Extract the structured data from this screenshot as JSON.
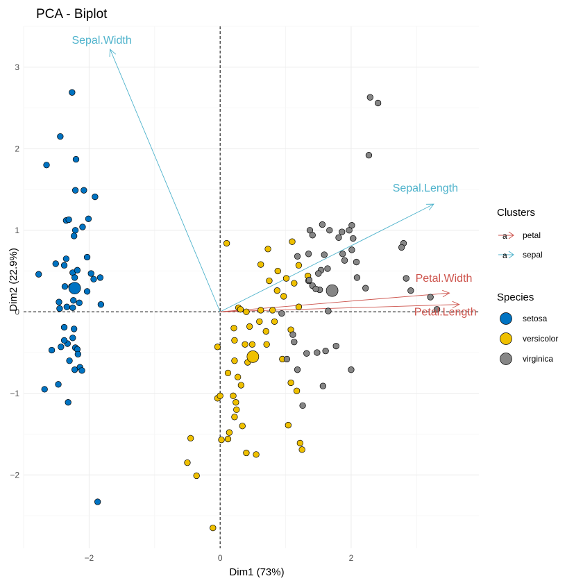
{
  "chart_data": {
    "type": "scatter",
    "title": "PCA - Biplot",
    "xlabel": "Dim1 (73%)",
    "ylabel": "Dim2 (22.9%)",
    "xlim": [
      -3.0,
      3.95
    ],
    "ylim": [
      -2.9,
      3.5
    ],
    "x_ticks": [
      -2,
      0,
      2
    ],
    "y_ticks": [
      -2,
      -1,
      0,
      1,
      2,
      3
    ],
    "grid": true,
    "reference_lines": {
      "x": 0,
      "y": 0,
      "style": "dashed"
    },
    "legend_placement": "right",
    "species_legend": {
      "title": "Species",
      "entries": [
        {
          "label": "setosa",
          "color": "#0073C2"
        },
        {
          "label": "versicolor",
          "color": "#EFC000"
        },
        {
          "label": "virginica",
          "color": "#868686"
        }
      ]
    },
    "cluster_legend": {
      "title": "Clusters",
      "entries": [
        {
          "label": "petal",
          "color": "#CD534C"
        },
        {
          "label": "sepal",
          "color": "#4FB3CC"
        }
      ]
    },
    "arrows": [
      {
        "label": "Sepal.Width",
        "cluster": "sepal",
        "x": -1.68,
        "y": 3.22
      },
      {
        "label": "Sepal.Length",
        "cluster": "sepal",
        "x": 3.26,
        "y": 1.32
      },
      {
        "label": "Petal.Width",
        "cluster": "petal",
        "x": 3.5,
        "y": 0.23
      },
      {
        "label": "Petal.Length",
        "cluster": "petal",
        "x": 3.65,
        "y": 0.09
      }
    ],
    "centroids": [
      {
        "species": "setosa",
        "x": -2.22,
        "y": 0.29
      },
      {
        "species": "versicolor",
        "x": 0.5,
        "y": -0.55
      },
      {
        "species": "virginica",
        "x": 1.71,
        "y": 0.26
      }
    ],
    "series": [
      {
        "name": "setosa",
        "points": [
          [
            -2.26,
            2.69
          ],
          [
            -2.44,
            2.15
          ],
          [
            -2.2,
            1.87
          ],
          [
            -2.65,
            1.8
          ],
          [
            -2.21,
            1.49
          ],
          [
            -2.08,
            1.49
          ],
          [
            -1.91,
            1.41
          ],
          [
            -2.35,
            1.12
          ],
          [
            -2.31,
            1.13
          ],
          [
            -2.01,
            1.14
          ],
          [
            -2.21,
            1.0
          ],
          [
            -2.1,
            1.04
          ],
          [
            -2.23,
            0.93
          ],
          [
            -2.35,
            0.65
          ],
          [
            -2.03,
            0.67
          ],
          [
            -2.51,
            0.59
          ],
          [
            -2.38,
            0.57
          ],
          [
            -2.25,
            0.48
          ],
          [
            -2.18,
            0.51
          ],
          [
            -1.97,
            0.47
          ],
          [
            -2.77,
            0.46
          ],
          [
            -2.22,
            0.42
          ],
          [
            -1.93,
            0.4
          ],
          [
            -1.83,
            0.42
          ],
          [
            -2.37,
            0.31
          ],
          [
            -2.27,
            0.31
          ],
          [
            -2.03,
            0.25
          ],
          [
            -2.24,
            0.14
          ],
          [
            -2.46,
            0.12
          ],
          [
            -2.34,
            0.06
          ],
          [
            -2.15,
            0.11
          ],
          [
            -2.45,
            0.04
          ],
          [
            -2.25,
            0.05
          ],
          [
            -1.82,
            0.09
          ],
          [
            -2.38,
            -0.19
          ],
          [
            -2.23,
            -0.21
          ],
          [
            -2.25,
            -0.32
          ],
          [
            -2.33,
            -0.39
          ],
          [
            -2.38,
            -0.35
          ],
          [
            -2.43,
            -0.43
          ],
          [
            -2.57,
            -0.47
          ],
          [
            -2.21,
            -0.44
          ],
          [
            -2.18,
            -0.46
          ],
          [
            -2.17,
            -0.52
          ],
          [
            -2.3,
            -0.6
          ],
          [
            -2.14,
            -0.68
          ],
          [
            -2.11,
            -0.72
          ],
          [
            -2.22,
            -0.71
          ],
          [
            -2.68,
            -0.95
          ],
          [
            -2.47,
            -0.89
          ],
          [
            -2.32,
            -1.11
          ],
          [
            -1.87,
            -2.33
          ]
        ]
      },
      {
        "name": "versicolor",
        "points": [
          [
            0.1,
            0.84
          ],
          [
            0.73,
            0.77
          ],
          [
            1.1,
            0.86
          ],
          [
            0.62,
            0.58
          ],
          [
            0.88,
            0.5
          ],
          [
            1.2,
            0.57
          ],
          [
            1.34,
            0.44
          ],
          [
            0.75,
            0.38
          ],
          [
            1.01,
            0.41
          ],
          [
            1.13,
            0.35
          ],
          [
            0.87,
            0.26
          ],
          [
            0.97,
            0.19
          ],
          [
            0.62,
            0.02
          ],
          [
            0.8,
            0.02
          ],
          [
            1.2,
            0.06
          ],
          [
            0.28,
            0.05
          ],
          [
            0.31,
            0.03
          ],
          [
            0.4,
            0.0
          ],
          [
            0.6,
            -0.12
          ],
          [
            0.83,
            -0.12
          ],
          [
            0.45,
            -0.18
          ],
          [
            1.08,
            -0.22
          ],
          [
            0.21,
            -0.2
          ],
          [
            0.7,
            -0.24
          ],
          [
            0.22,
            -0.35
          ],
          [
            0.38,
            -0.4
          ],
          [
            0.49,
            -0.4
          ],
          [
            0.71,
            -0.4
          ],
          [
            -0.04,
            -0.43
          ],
          [
            0.22,
            -0.6
          ],
          [
            0.42,
            -0.62
          ],
          [
            0.95,
            -0.58
          ],
          [
            0.12,
            -0.75
          ],
          [
            0.27,
            -0.8
          ],
          [
            0.32,
            -0.9
          ],
          [
            1.08,
            -0.87
          ],
          [
            1.17,
            -0.97
          ],
          [
            0.2,
            -1.03
          ],
          [
            -0.04,
            -1.06
          ],
          [
            0.24,
            -1.11
          ],
          [
            0.0,
            -1.03
          ],
          [
            0.25,
            -1.2
          ],
          [
            0.22,
            -1.29
          ],
          [
            0.34,
            -1.4
          ],
          [
            0.14,
            -1.48
          ],
          [
            1.04,
            -1.39
          ],
          [
            -0.45,
            -1.55
          ],
          [
            0.02,
            -1.57
          ],
          [
            0.12,
            -1.56
          ],
          [
            0.4,
            -1.73
          ],
          [
            0.55,
            -1.75
          ],
          [
            1.22,
            -1.61
          ],
          [
            1.25,
            -1.69
          ],
          [
            -0.5,
            -1.85
          ],
          [
            -0.36,
            -2.01
          ],
          [
            -0.11,
            -2.65
          ]
        ]
      },
      {
        "name": "virginica",
        "points": [
          [
            2.29,
            2.63
          ],
          [
            2.41,
            2.56
          ],
          [
            2.27,
            1.92
          ],
          [
            1.56,
            1.07
          ],
          [
            1.37,
            1.0
          ],
          [
            1.67,
            1.0
          ],
          [
            1.86,
            0.98
          ],
          [
            2.01,
            1.06
          ],
          [
            1.41,
            0.94
          ],
          [
            1.97,
            1.0
          ],
          [
            1.81,
            0.91
          ],
          [
            2.03,
            0.9
          ],
          [
            2.01,
            0.76
          ],
          [
            2.8,
            0.84
          ],
          [
            2.77,
            0.79
          ],
          [
            1.35,
            0.71
          ],
          [
            1.59,
            0.7
          ],
          [
            1.87,
            0.71
          ],
          [
            1.18,
            0.68
          ],
          [
            1.9,
            0.63
          ],
          [
            2.08,
            0.61
          ],
          [
            1.54,
            0.51
          ],
          [
            1.64,
            0.53
          ],
          [
            1.5,
            0.47
          ],
          [
            1.35,
            0.38
          ],
          [
            1.36,
            0.39
          ],
          [
            2.09,
            0.42
          ],
          [
            1.41,
            0.32
          ],
          [
            1.52,
            0.27
          ],
          [
            1.46,
            0.28
          ],
          [
            2.22,
            0.29
          ],
          [
            2.84,
            0.41
          ],
          [
            2.91,
            0.26
          ],
          [
            3.21,
            0.18
          ],
          [
            3.31,
            0.03
          ],
          [
            1.65,
            0.01
          ],
          [
            0.94,
            -0.02
          ],
          [
            1.11,
            -0.28
          ],
          [
            1.13,
            -0.37
          ],
          [
            1.32,
            -0.51
          ],
          [
            1.48,
            -0.5
          ],
          [
            1.77,
            -0.42
          ],
          [
            1.61,
            -0.48
          ],
          [
            1.02,
            -0.58
          ],
          [
            1.18,
            -0.71
          ],
          [
            1.57,
            -0.91
          ],
          [
            2.0,
            -0.71
          ],
          [
            1.26,
            -1.15
          ]
        ]
      }
    ]
  }
}
